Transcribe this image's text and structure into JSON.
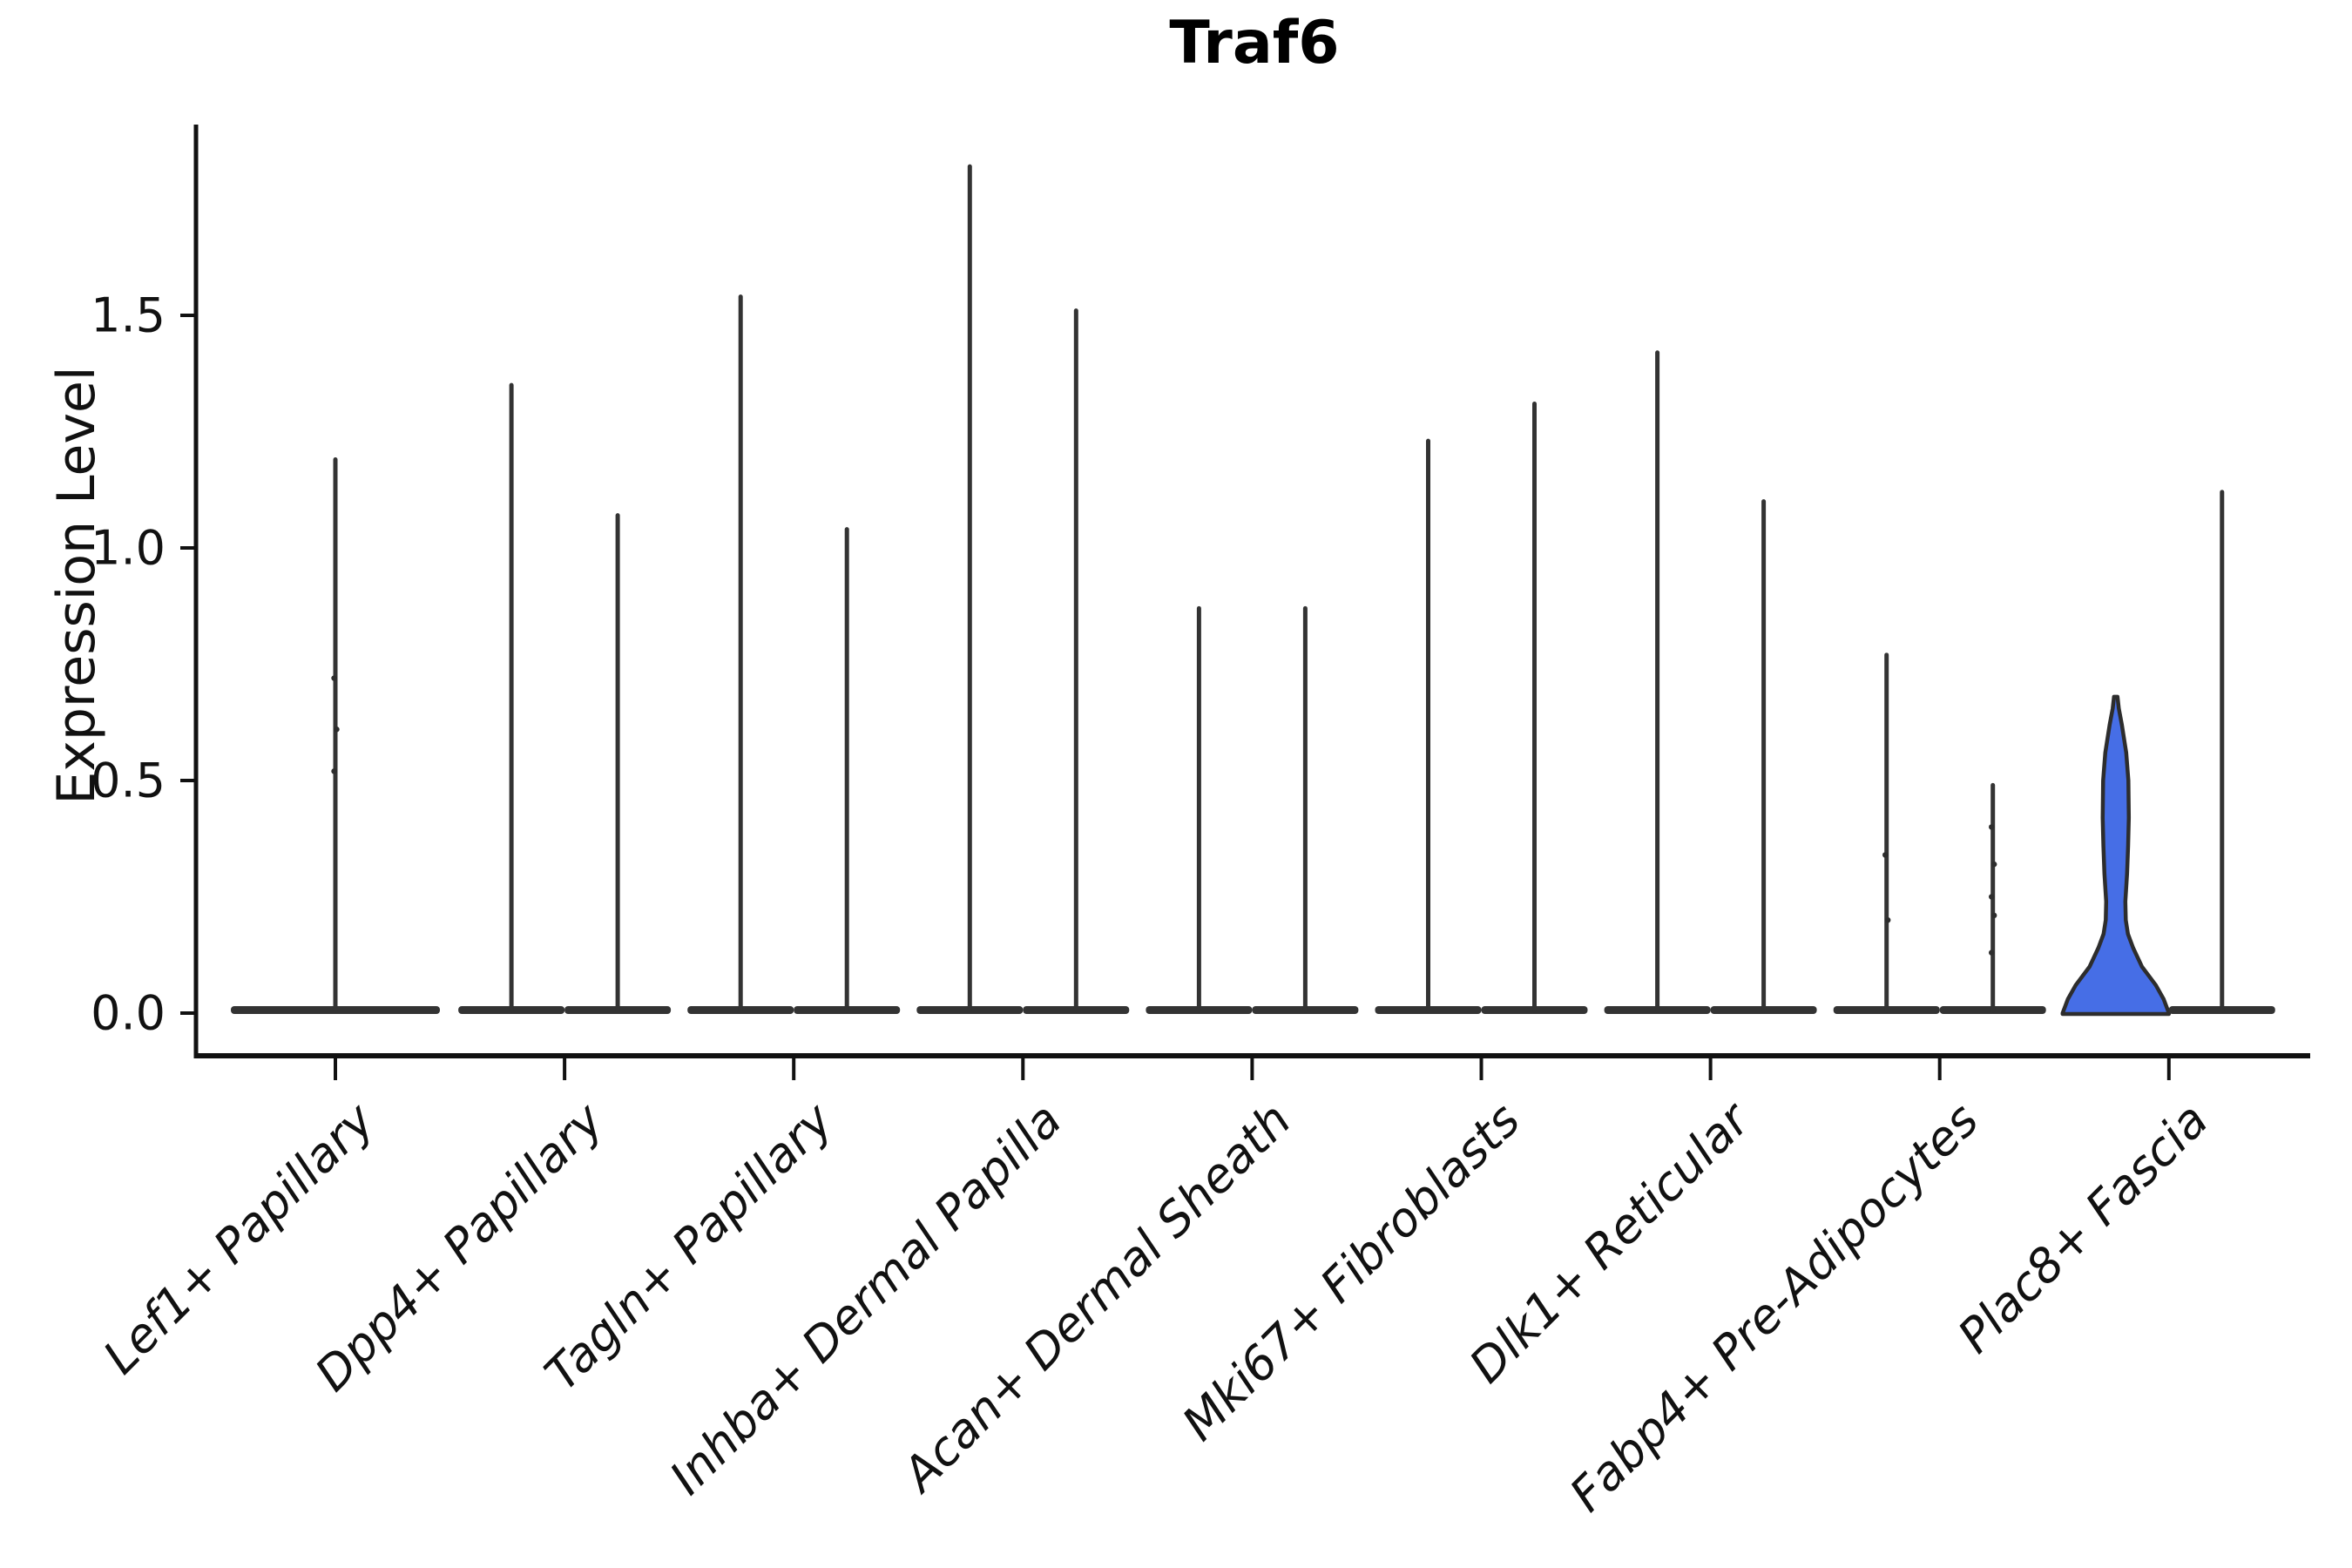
{
  "chart_data": {
    "type": "violin",
    "title": "Traf6",
    "ylabel": "Expression Level",
    "xlabel": "",
    "ylim": [
      0,
      1.9
    ],
    "yticks": [
      {
        "value": 0.0,
        "label": "0.0"
      },
      {
        "value": 0.5,
        "label": "0.5"
      },
      {
        "value": 1.0,
        "label": "1.0"
      },
      {
        "value": 1.5,
        "label": "1.5"
      }
    ],
    "grid": false,
    "legend": "none",
    "description": "Violin plot of Traf6 expression; most cells have zero expression so violins collapse to a wide flat base at 0 with a thin spike to the maximum; each category except the first shows two side-by-side violins; the left violin of Plac8+ Fascia is filled blue with visible density bulge",
    "categories": [
      {
        "label": "Lef1+ Papillary",
        "violins": [
          {
            "position": "center",
            "max": 1.19,
            "style": "line",
            "dots": [
              0.52,
              0.61,
              0.72
            ]
          }
        ]
      },
      {
        "label": "Dpp4+ Papillary",
        "violins": [
          {
            "position": "left",
            "max": 1.35,
            "style": "line"
          },
          {
            "position": "right",
            "max": 1.07,
            "style": "line"
          }
        ]
      },
      {
        "label": "Tagln+ Papillary",
        "violins": [
          {
            "position": "left",
            "max": 1.54,
            "style": "line"
          },
          {
            "position": "right",
            "max": 1.04,
            "style": "line"
          }
        ]
      },
      {
        "label": "Inhba+ Dermal Papilla",
        "violins": [
          {
            "position": "left",
            "max": 1.82,
            "style": "line"
          },
          {
            "position": "right",
            "max": 1.51,
            "style": "line"
          }
        ]
      },
      {
        "label": "Acan+ Dermal Sheath",
        "violins": [
          {
            "position": "left",
            "max": 0.87,
            "style": "line"
          },
          {
            "position": "right",
            "max": 0.87,
            "style": "line"
          }
        ]
      },
      {
        "label": "Mki67+ Fibroblasts",
        "violins": [
          {
            "position": "left",
            "max": 1.23,
            "style": "line"
          },
          {
            "position": "right",
            "max": 1.31,
            "style": "line"
          }
        ]
      },
      {
        "label": "Dlk1+ Reticular",
        "violins": [
          {
            "position": "left",
            "max": 1.42,
            "style": "line"
          },
          {
            "position": "right",
            "max": 1.1,
            "style": "line"
          }
        ]
      },
      {
        "label": "Fabp4+ Pre-Adipocytes",
        "violins": [
          {
            "position": "left",
            "max": 0.77,
            "style": "line",
            "dots": [
              0.34,
              0.2
            ]
          },
          {
            "position": "right",
            "max": 0.49,
            "style": "line",
            "dots": [
              0.4,
              0.32,
              0.25,
              0.21,
              0.13
            ]
          }
        ]
      },
      {
        "label": "Plac8+ Fascia",
        "violins": [
          {
            "position": "left",
            "max": 0.68,
            "style": "filled",
            "fill_color": "#466ee6",
            "profile": [
              [
                0,
                61
              ],
              [
                0.015,
                58
              ],
              [
                0.03,
                55
              ],
              [
                0.06,
                46
              ],
              [
                0.1,
                30
              ],
              [
                0.14,
                20
              ],
              [
                0.17,
                14
              ],
              [
                0.2,
                11.5
              ],
              [
                0.24,
                11
              ],
              [
                0.3,
                13
              ],
              [
                0.36,
                14.2
              ],
              [
                0.42,
                15
              ],
              [
                0.5,
                14.5
              ],
              [
                0.56,
                12
              ],
              [
                0.62,
                7
              ],
              [
                0.655,
                3.5
              ],
              [
                0.68,
                2
              ]
            ]
          },
          {
            "position": "right",
            "max": 1.12,
            "style": "line"
          }
        ]
      }
    ]
  },
  "style": {
    "ink": "#333333",
    "outline": "#2d2d2d",
    "axis_color": "#111111",
    "violin_fill": "#466ee6",
    "background": "#ffffff"
  }
}
